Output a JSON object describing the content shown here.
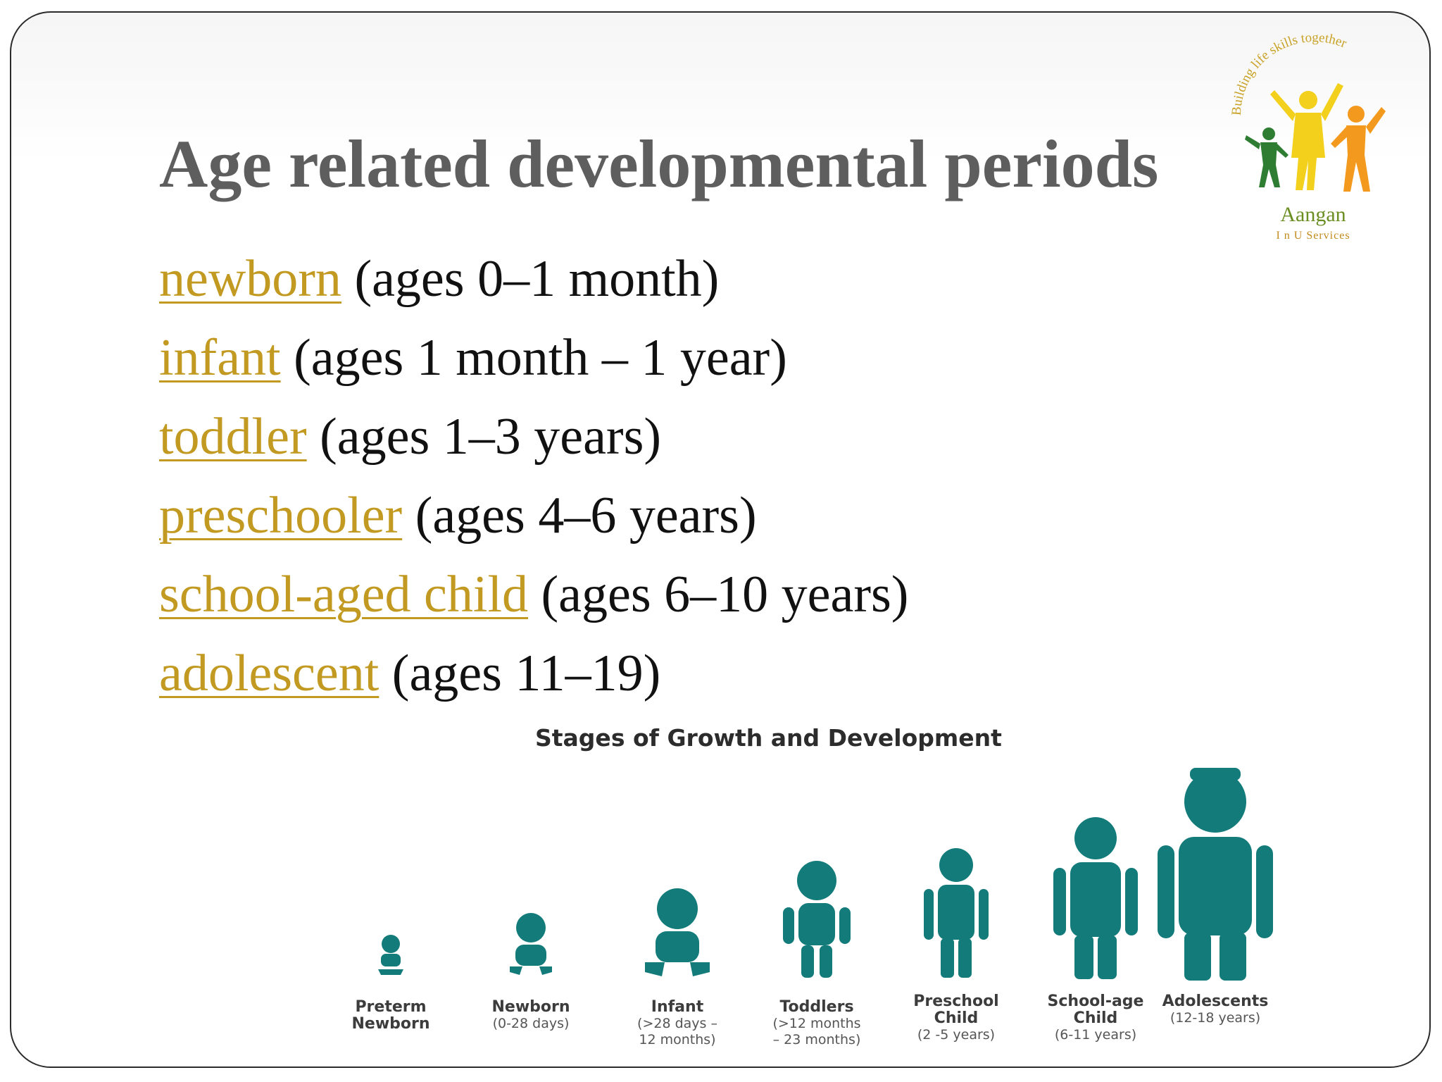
{
  "slide": {
    "title": "Age related developmental periods",
    "stages": [
      {
        "term": "newborn",
        "range": "(ages 0–1 month)"
      },
      {
        "term": "infant",
        "range": "(ages 1 month – 1 year)"
      },
      {
        "term": "toddler",
        "range": "(ages 1–3 years)"
      },
      {
        "term": "preschooler",
        "range": "(ages 4–6 years)"
      },
      {
        "term": "school-aged child",
        "range": "(ages 6–10 years)"
      },
      {
        "term": "adolescent",
        "range": "(ages 11–19)"
      }
    ]
  },
  "logo": {
    "arc_text": "Building life skills together",
    "name": "Aangan",
    "subtitle": "I n U Services",
    "colors": {
      "green": "#2e7d32",
      "yellow": "#f2d01c",
      "orange": "#f39a1e",
      "text_green": "#6b8e23"
    }
  },
  "infographic": {
    "title": "Stages of Growth and Development",
    "figure_color": "#137b7a",
    "figures": [
      {
        "name": "Preterm\nNewborn",
        "range": ""
      },
      {
        "name": "Newborn",
        "range": "(0-28 days)"
      },
      {
        "name": "Infant",
        "range": "(>28 days –\n12 months)"
      },
      {
        "name": "Toddlers",
        "range": "(>12 months\n– 23 months)"
      },
      {
        "name": "Preschool\nChild",
        "range": "(2 -5 years)"
      },
      {
        "name": "School-age\nChild",
        "range": "(6-11 years)"
      },
      {
        "name": "Adolescents",
        "range": "(12-18 years)"
      }
    ]
  },
  "colors": {
    "link": "#c29a22",
    "title": "#5e5e5e",
    "body_text": "#111111"
  }
}
